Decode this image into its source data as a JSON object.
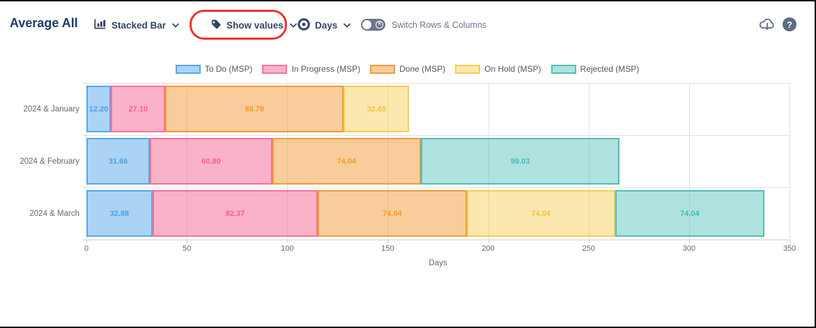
{
  "header": {
    "title": "Average All",
    "chart_type_label": "Stacked Bar",
    "show_values_label": "Show values",
    "unit_label": "Days",
    "switch_label": "Switch Rows & Columns",
    "toggle_state": "off",
    "help_glyph": "?"
  },
  "annotation": {
    "shape": "red-rounded-rect-around-show-values",
    "color": "#e8352e"
  },
  "chart_data": {
    "type": "bar",
    "orientation": "horizontal",
    "stacked": true,
    "grid": true,
    "legend_position": "top",
    "title": "Average All",
    "xlabel": "Days",
    "xlim": [
      0,
      350
    ],
    "xticks": [
      0,
      50,
      100,
      150,
      200,
      250,
      300,
      350
    ],
    "value_decimals": 2,
    "categories": [
      "2024 & January",
      "2024 & February",
      "2024 & March"
    ],
    "series": [
      {
        "name": "To Do (MSP)",
        "border": "#57a7ea",
        "fill": "rgba(87,167,234,0.5)",
        "label_color": "#4d9fe8",
        "values": [
          12.2,
          31.66,
          32.88
        ]
      },
      {
        "name": "In Progress (MSP)",
        "border": "#f6729b",
        "fill": "rgba(246,114,155,0.55)",
        "label_color": "#f5608e",
        "values": [
          27.1,
          60.8,
          82.37
        ]
      },
      {
        "name": "Done (MSP)",
        "border": "#f29b38",
        "fill": "rgba(242,155,56,0.5)",
        "label_color": "#f59a23",
        "values": [
          88.78,
          74.04,
          74.04
        ]
      },
      {
        "name": "On Hold (MSP)",
        "border": "#f6cd4c",
        "fill": "rgba(246,205,76,0.45)",
        "label_color": "#f0c23c",
        "values": [
          32.65,
          0,
          74.04
        ]
      },
      {
        "name": "Rejected (MSP)",
        "border": "#4ebfb7",
        "fill": "rgba(78,191,183,0.45)",
        "label_color": "#3fbcb2",
        "values": [
          0,
          99.03,
          74.04
        ]
      }
    ]
  }
}
